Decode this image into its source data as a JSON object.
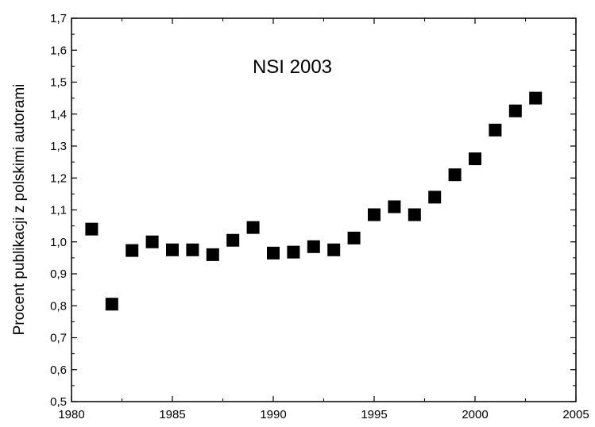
{
  "chart_data": {
    "type": "scatter",
    "title": "",
    "annotation": "NSI 2003",
    "xlabel": "",
    "ylabel": "Procent publikacji z polskimi autorami",
    "xlim": [
      1980,
      2005
    ],
    "ylim": [
      0.5,
      1.7
    ],
    "x_ticks": [
      1980,
      1985,
      1990,
      1995,
      2000,
      2005
    ],
    "x_tick_labels": [
      "1980",
      "1985",
      "1990",
      "1995",
      "2000",
      "2005"
    ],
    "y_ticks": [
      0.5,
      0.6,
      0.7,
      0.8,
      0.9,
      1.0,
      1.1,
      1.2,
      1.3,
      1.4,
      1.5,
      1.6,
      1.7
    ],
    "y_tick_labels": [
      "0,5",
      "0,6",
      "0,7",
      "0,8",
      "0,9",
      "1,0",
      "1,1",
      "1,2",
      "1,3",
      "1,4",
      "1,5",
      "1,6",
      "1,7"
    ],
    "grid": false,
    "marker": "square",
    "marker_color": "#000000",
    "series": [
      {
        "x": [
          1981,
          1982,
          1983,
          1984,
          1985,
          1986,
          1987,
          1988,
          1989,
          1990,
          1991,
          1992,
          1993,
          1994,
          1995,
          1996,
          1997,
          1998,
          1999,
          2000,
          2001,
          2002,
          2003
        ],
        "y": [
          1.04,
          0.805,
          0.973,
          1.0,
          0.975,
          0.975,
          0.96,
          1.005,
          1.045,
          0.965,
          0.968,
          0.985,
          0.975,
          1.012,
          1.085,
          1.11,
          1.085,
          1.14,
          1.21,
          1.26,
          1.35,
          1.41,
          1.45
        ]
      }
    ]
  }
}
